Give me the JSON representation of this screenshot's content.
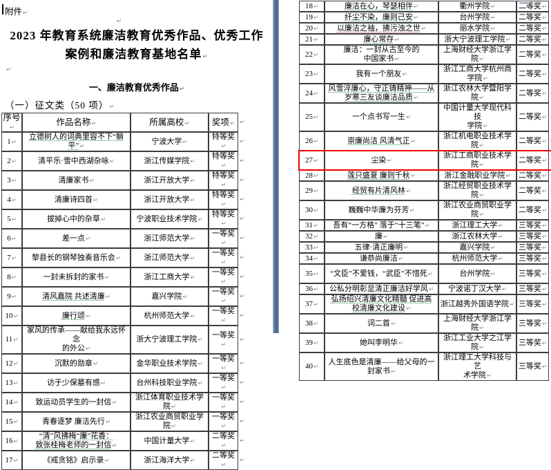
{
  "marks": {
    "pilcrow": "↵"
  },
  "colors": {
    "highlight_red": "#f00000",
    "page_gap_blue": "#47668e"
  },
  "page": {
    "attachment_label": "附件",
    "title_line1": "2023 年教育系统廉洁教育优秀作品、优秀工作",
    "title_line2": "案例和廉洁教育基地名单",
    "section_heading": "一、廉洁教育优秀作品",
    "subsection_heading": "（一）征文类（50 项）"
  },
  "table": {
    "headers": [
      "序号",
      "作品名称",
      "所属高校",
      "奖项"
    ],
    "highlight_row_no": "27",
    "left_rows": [
      {
        "no": "1",
        "title": "立德树人的词典里容不下“躺平”",
        "school": "宁波大学",
        "award": "特等奖",
        "u": "g"
      },
      {
        "no": "2",
        "title": "清平乐·雪中西湖杂咏",
        "school": "浙江传媒学院",
        "award": "特等奖"
      },
      {
        "no": "3",
        "title": "清廉家书",
        "school": "浙江开放大学",
        "award": "特等奖"
      },
      {
        "no": "4",
        "title": "清廉诗四首",
        "school": "浙江开放大学",
        "award": "特等奖"
      },
      {
        "no": "5",
        "title": "拔掉心中的杂草",
        "school": "宁波职业技术学院",
        "award": "特等奖"
      },
      {
        "no": "6",
        "title": "差一点",
        "school": "浙江师范大学",
        "award": "一等奖"
      },
      {
        "no": "7",
        "title": "黎县长的钢琴独奏音乐会",
        "school": "浙江师范大学",
        "award": "一等奖"
      },
      {
        "no": "8",
        "title": "一封未拆封的家书",
        "school": "浙江工商大学",
        "award": "一等奖"
      },
      {
        "no": "9",
        "title": "清风嘉院 共述清廉",
        "school": "嘉兴学院",
        "award": "一等奖",
        "u": "g"
      },
      {
        "no": "10",
        "title": "廉行颂",
        "school": "杭州师范大学",
        "award": "一等奖",
        "u": "g"
      },
      {
        "no": "11",
        "title": "家风的传承——献给我永远怀念\n的外公",
        "school": "浙大宁波理工学院",
        "award": "一等奖"
      },
      {
        "no": "12",
        "title": "沉默的勋章",
        "school": "金华职业技术学院",
        "award": "一等奖"
      },
      {
        "no": "13",
        "title": "访于少保墓有感",
        "school": "台州科技职业学院",
        "award": "一等奖"
      },
      {
        "no": "14",
        "title": "致运动员学生的一封信",
        "school": "浙江体育职业技术学院",
        "award": "一等奖"
      },
      {
        "no": "15",
        "title": "青春逐梦 廉洁先行",
        "school": "浙江农业商贸职业学院",
        "award": "一等奖"
      },
      {
        "no": "16",
        "title": "“清”风拂梅“廉”花香：\n致张桂梅老师的一封信",
        "school": "中国计量大学",
        "award": "二等奖",
        "u": "g"
      },
      {
        "no": "17",
        "title": "《戒贪铭》启示录",
        "school": "浙江海洋大学",
        "award": "二等奖"
      }
    ],
    "right_rows": [
      {
        "no": "18",
        "title": "廉洁在心，琴瑟相伴",
        "school": "衢州学院",
        "award": "二等奖",
        "u": "g"
      },
      {
        "no": "19",
        "title": "纤尘不染，廉则己安",
        "school": "台州学院",
        "award": "二等奖",
        "u": "g"
      },
      {
        "no": "20",
        "title": "以廉洁之袖，拂污浊之世",
        "school": "丽水学院",
        "award": "二等奖",
        "u": "r"
      },
      {
        "no": "21",
        "title": "廉心常存",
        "school": "浙大宁波理工学院",
        "award": "二等奖",
        "u": "g"
      },
      {
        "no": "22",
        "title": "廉洁：一封从古至今的\n中国家书",
        "school": "上海财经大学浙江学院",
        "award": "二等奖"
      },
      {
        "no": "23",
        "title": "我有一个朋友",
        "school": "浙江工商大学杭州商\n学院",
        "award": "二等奖"
      },
      {
        "no": "24",
        "title": "风雪淬廉心，守正铸精神——从\n岁寒三友谈廉洁品质",
        "school": "浙江农林大学暨阳学院",
        "award": "二等奖",
        "u": "g"
      },
      {
        "no": "25",
        "title": "一个点书写一生",
        "school": "中国计量大学现代科技\n学院",
        "award": "二等奖"
      },
      {
        "no": "26",
        "title": "崇廉尚洁 风清气正",
        "school": "浙江机电职业技术学院",
        "award": "二等奖",
        "u": "g"
      },
      {
        "no": "27",
        "title": "尘染",
        "school": "浙江工商职业技术学院",
        "award": "二等奖"
      },
      {
        "no": "28",
        "title": "莲只盛夏 廉则千秋",
        "school": "浙江金融职业学院",
        "award": "二等奖",
        "u": "g"
      },
      {
        "no": "29",
        "title": "经贸有片清风林",
        "school": "浙江经贸职业技术学院",
        "award": "二等奖",
        "u": "g"
      },
      {
        "no": "30",
        "title": "巍巍中华廉为芬芳",
        "school": "浙江农业商贸职业学院",
        "award": "二等奖"
      },
      {
        "no": "31",
        "title": "吾有“一方格” 落于“十三笔”",
        "school": "浙江理工大学",
        "award": "三等奖"
      },
      {
        "no": "32",
        "title": "廉",
        "school": "浙江农林大学",
        "award": "三等奖"
      },
      {
        "no": "33",
        "title": "五律·清正廉明",
        "school": "嘉兴学院",
        "award": "三等奖"
      },
      {
        "no": "34",
        "title": "谦恭尚廉洁",
        "school": "杭州师范大学",
        "award": "三等奖"
      },
      {
        "no": "35",
        "title": "“文臣”不爱钱，“武臣”不惜死",
        "school": "台州学院",
        "award": "三等奖",
        "tall": true
      },
      {
        "no": "36",
        "title": "公私分明彰显清正廉洁好学风",
        "school": "宁波诺丁汉大学",
        "award": "三等奖"
      },
      {
        "no": "37",
        "title": "弘扬绍兴清廉文化精髓 促进高\n校清廉文化建设",
        "school": "浙江越秀外国语学院",
        "award": "三等奖",
        "u": "g"
      },
      {
        "no": "38",
        "title": "词二首",
        "school": "上海财经大学浙江学院",
        "award": "三等奖"
      },
      {
        "no": "39",
        "title": "她叫李明华",
        "school": "浙江工业大学之江学院",
        "award": "三等奖"
      },
      {
        "no": "40",
        "title": "人生底色是清廉——给父母的一\n封家书",
        "school": "浙江理工大学科技与艺\n术学院",
        "award": "三等奖"
      }
    ]
  }
}
